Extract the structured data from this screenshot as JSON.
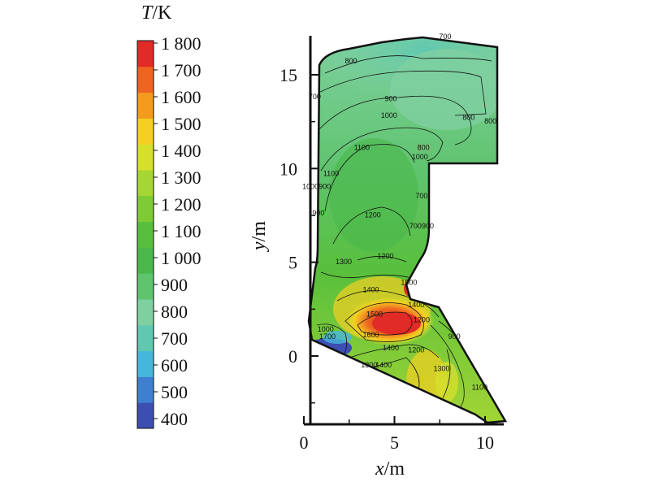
{
  "chart_data": {
    "type": "heatmap",
    "title": "",
    "xlabel_var": "x",
    "xlabel_unit": "/m",
    "ylabel_var": "y",
    "ylabel_unit": "/m",
    "xlim": [
      0,
      11
    ],
    "ylim": [
      -3.6,
      17
    ],
    "xticks": [
      0,
      5,
      10
    ],
    "yticks": [
      0,
      5,
      10,
      15
    ],
    "colorbar": {
      "label_var": "T",
      "label_unit": "/K",
      "levels": [
        400,
        500,
        600,
        700,
        800,
        900,
        1000,
        1100,
        1200,
        1300,
        1400,
        1500,
        1600,
        1700,
        1800
      ],
      "tick_labels": [
        "1 800",
        "1 700",
        "1 600",
        "1 500",
        "1 400",
        "1 300",
        "1 200",
        "1 100",
        "1 000",
        "900",
        "800",
        "700",
        "600",
        "500",
        "400"
      ],
      "colors": [
        "#3c4fb0",
        "#3f7fd0",
        "#46b7dc",
        "#60c8b0",
        "#7fd0a0",
        "#5fc46e",
        "#4ab84a",
        "#58bf3c",
        "#7ecb34",
        "#a6d634",
        "#d6df2c",
        "#f5cf22",
        "#f49a1e",
        "#ee6420",
        "#e02b26"
      ]
    },
    "contour_labels": [
      {
        "text": "700",
        "x": 7.8,
        "y": 16.9
      },
      {
        "text": "800",
        "x": 2.6,
        "y": 15.6
      },
      {
        "text": "700",
        "x": 0.6,
        "y": 13.7
      },
      {
        "text": "900",
        "x": 4.8,
        "y": 13.6
      },
      {
        "text": "800",
        "x": 9.1,
        "y": 12.6
      },
      {
        "text": "800",
        "x": 10.3,
        "y": 12.4
      },
      {
        "text": "1000",
        "x": 4.7,
        "y": 12.7
      },
      {
        "text": "1100",
        "x": 3.2,
        "y": 11.0
      },
      {
        "text": "800",
        "x": 6.6,
        "y": 11.0
      },
      {
        "text": "1000",
        "x": 6.4,
        "y": 10.5
      },
      {
        "text": "1100",
        "x": 1.5,
        "y": 9.6
      },
      {
        "text": "1000900",
        "x": 0.7,
        "y": 8.9
      },
      {
        "text": "700",
        "x": 6.5,
        "y": 8.4
      },
      {
        "text": "900",
        "x": 0.8,
        "y": 7.5
      },
      {
        "text": "1200",
        "x": 3.8,
        "y": 7.4
      },
      {
        "text": "700900",
        "x": 6.5,
        "y": 6.8
      },
      {
        "text": "1200",
        "x": 4.5,
        "y": 5.2
      },
      {
        "text": "1300",
        "x": 2.2,
        "y": 4.9
      },
      {
        "text": "1500",
        "x": 5.8,
        "y": 3.8
      },
      {
        "text": "1400",
        "x": 3.7,
        "y": 3.4
      },
      {
        "text": "1400",
        "x": 6.2,
        "y": 2.6
      },
      {
        "text": "1500",
        "x": 3.9,
        "y": 2.1
      },
      {
        "text": "1600",
        "x": 3.7,
        "y": 1.0
      },
      {
        "text": "1200",
        "x": 6.5,
        "y": 1.8
      },
      {
        "text": "1000",
        "x": 1.2,
        "y": 1.3
      },
      {
        "text": "1700",
        "x": 1.3,
        "y": 0.9
      },
      {
        "text": "1400",
        "x": 4.8,
        "y": 0.3
      },
      {
        "text": "1300",
        "x": 3.6,
        "y": -0.6
      },
      {
        "text": "1400",
        "x": 4.4,
        "y": -0.6
      },
      {
        "text": "1200",
        "x": 6.2,
        "y": 0.2
      },
      {
        "text": "900",
        "x": 8.3,
        "y": 0.9
      },
      {
        "text": "1300",
        "x": 7.6,
        "y": -0.8
      },
      {
        "text": "1100",
        "x": 9.7,
        "y": -1.8
      }
    ]
  }
}
